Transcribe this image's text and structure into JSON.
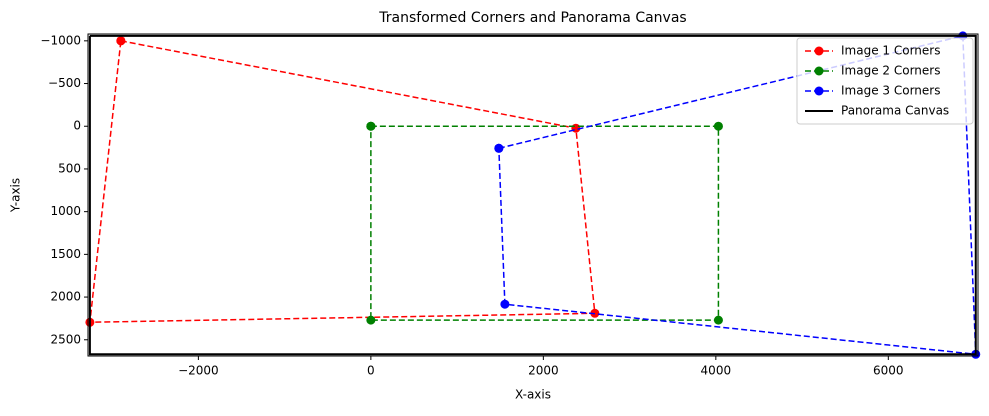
{
  "chart_data": {
    "type": "line",
    "title": "Transformed Corners and Panorama Canvas",
    "x_label": "X-axis",
    "y_label": "Y-axis",
    "xlim": [
      -3280,
      7040
    ],
    "ylim": [
      2690,
      -1080
    ],
    "xticks": [
      {
        "value": -2000,
        "label": "−2000"
      },
      0,
      2000,
      4000,
      6000
    ],
    "yticks": [
      {
        "value": -1000,
        "label": "−1000"
      },
      {
        "value": -500,
        "label": "−500"
      },
      0,
      500,
      1000,
      1500,
      2000,
      2500
    ],
    "legend": "upper right",
    "series": [
      {
        "name": "Image 1 Corners",
        "color": "#ff0000",
        "linestyle": "dashed",
        "marker": true,
        "x": [
          -2899,
          2377,
          2597,
          -3258,
          -2899
        ],
        "values": [
          -1000,
          23,
          2190,
          2295,
          -1000
        ]
      },
      {
        "name": "Image 2 Corners",
        "color": "#008000",
        "linestyle": "dashed",
        "marker": true,
        "x": [
          0,
          4030,
          4030,
          0,
          0
        ],
        "values": [
          0,
          0,
          2270,
          2270,
          0
        ]
      },
      {
        "name": "Image 3 Corners",
        "color": "#0000ff",
        "linestyle": "dashed",
        "marker": true,
        "x": [
          1484,
          6864,
          7014,
          1554,
          1484
        ],
        "values": [
          258,
          -1058,
          2670,
          2084,
          258
        ]
      },
      {
        "name": "Panorama Canvas",
        "color": "#000000",
        "linestyle": "solid",
        "marker": false,
        "x": [
          -3258,
          7014,
          7014,
          -3258,
          -3258
        ],
        "values": [
          -1058,
          -1058,
          2670,
          2670,
          -1058
        ]
      }
    ]
  }
}
